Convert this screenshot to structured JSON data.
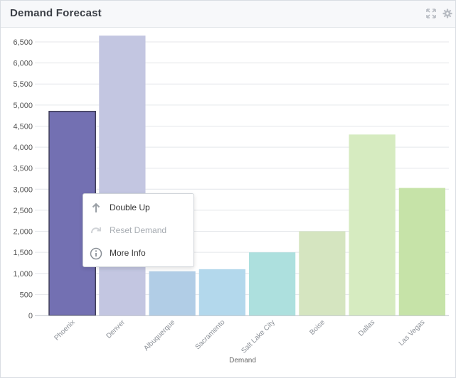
{
  "header": {
    "title": "Demand Forecast",
    "icons": [
      "expand-icon",
      "gear-icon"
    ]
  },
  "chart_data": {
    "type": "bar",
    "categories": [
      "Phoenix",
      "Denver",
      "Albuquerque",
      "Sacramento",
      "Salt Lake City",
      "Boise",
      "Dallas",
      "Las Vegas"
    ],
    "values": [
      4850,
      6650,
      1050,
      1100,
      1500,
      2000,
      4300,
      3030
    ],
    "colors": [
      "#7370b2",
      "#c3c6e1",
      "#b1cde6",
      "#b3d8ec",
      "#ade0de",
      "#d5e5c0",
      "#d6ebc0",
      "#c6e3a8"
    ],
    "selected_category": "Phoenix",
    "title": "",
    "xlabel": "Demand",
    "ylabel": "",
    "ylim": [
      0,
      6500
    ],
    "yticks": [
      0,
      500,
      1000,
      1500,
      2000,
      2500,
      3000,
      3500,
      4000,
      4500,
      5000,
      5500,
      6000,
      6500
    ],
    "ytick_labels": [
      "0",
      "500",
      "1,000",
      "1,500",
      "2,000",
      "2,500",
      "3,000",
      "3,500",
      "4,000",
      "4,500",
      "5,000",
      "5,500",
      "6,000",
      "6,500"
    ],
    "grid": true,
    "legend": "none"
  },
  "context_menu": {
    "items": [
      {
        "label": "Double Up",
        "icon": "arrow-up-icon",
        "disabled": false
      },
      {
        "label": "Reset Demand",
        "icon": "redo-icon",
        "disabled": true
      },
      {
        "label": "More Info",
        "icon": "info-icon",
        "disabled": false
      }
    ]
  }
}
